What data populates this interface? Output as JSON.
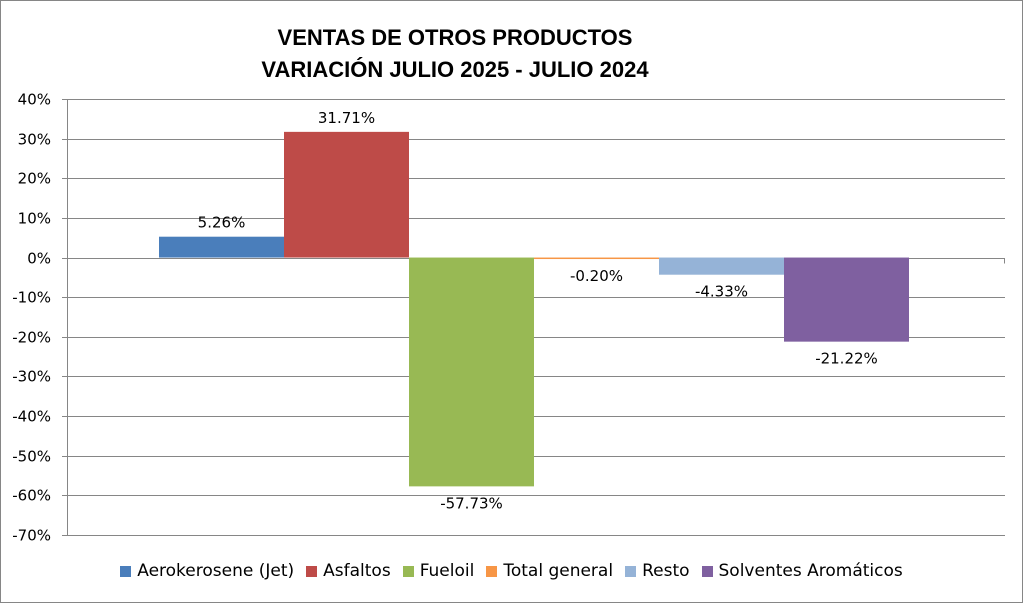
{
  "chart_data": {
    "type": "bar",
    "title_line1": "VENTAS DE OTROS PRODUCTOS",
    "title_line2": "VARIACIÓN JULIO 2025 - JULIO 2024",
    "xlabel": "",
    "ylabel": "",
    "ylim": [
      -70,
      40
    ],
    "yticks": [
      40,
      30,
      20,
      10,
      0,
      -10,
      -20,
      -30,
      -40,
      -50,
      -60,
      -70
    ],
    "ytick_labels": [
      "40%",
      "30%",
      "20%",
      "10%",
      "0%",
      "-10%",
      "-20%",
      "-30%",
      "-40%",
      "-50%",
      "-60%",
      "-70%"
    ],
    "grid": true,
    "legend_position": "bottom",
    "series": [
      {
        "name": "Aerokerosene (Jet)",
        "value": 5.26,
        "label": "5.26%",
        "color": "#4A7EBB"
      },
      {
        "name": "Asfaltos",
        "value": 31.71,
        "label": "31.71%",
        "color": "#BE4B48"
      },
      {
        "name": "Fueloil",
        "value": -57.73,
        "label": "-57.73%",
        "color": "#98B954"
      },
      {
        "name": "Total general",
        "value": -0.2,
        "label": "-0.20%",
        "color": "#F79646"
      },
      {
        "name": "Resto",
        "value": -4.33,
        "label": "-4.33%",
        "color": "#95B3D7"
      },
      {
        "name": "Solventes Aromáticos",
        "value": -21.22,
        "label": "-21.22%",
        "color": "#7F60A0"
      }
    ]
  }
}
